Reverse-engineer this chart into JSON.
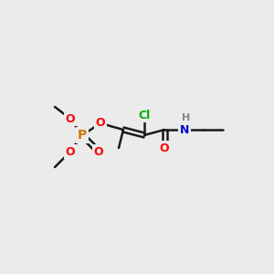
{
  "bg_color": "#ebebeb",
  "bond_color": "#1a1a1a",
  "bond_lw": 1.8,
  "atom_colors": {
    "O": "#ff0000",
    "P": "#cc7700",
    "Cl": "#00aa00",
    "N": "#0000cc",
    "H": "#888888",
    "C": "#1a1a1a"
  },
  "font_size": 9,
  "font_size_small": 8
}
